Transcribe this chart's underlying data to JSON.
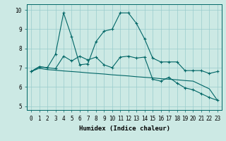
{
  "xlabel": "Humidex (Indice chaleur)",
  "ylabel": "",
  "background_color": "#cce9e4",
  "grid_color": "#99cccc",
  "line_color": "#006666",
  "xlim_min": -0.5,
  "xlim_max": 23.5,
  "ylim_min": 4.8,
  "ylim_max": 10.3,
  "xticks": [
    0,
    1,
    2,
    3,
    4,
    5,
    6,
    7,
    8,
    9,
    10,
    11,
    12,
    13,
    14,
    15,
    16,
    17,
    18,
    19,
    20,
    21,
    22,
    23
  ],
  "yticks": [
    5,
    6,
    7,
    8,
    9,
    10
  ],
  "series1_x": [
    0,
    1,
    2,
    3,
    4,
    5,
    6,
    7,
    8,
    9,
    10,
    11,
    12,
    13,
    14,
    15,
    16,
    17,
    18,
    19,
    20,
    21,
    22,
    23
  ],
  "series1_y": [
    6.8,
    7.05,
    7.0,
    7.7,
    9.85,
    8.6,
    7.15,
    7.2,
    8.35,
    8.9,
    9.0,
    9.85,
    9.85,
    9.3,
    8.5,
    7.5,
    7.3,
    7.3,
    7.3,
    6.85,
    6.85,
    6.85,
    6.7,
    6.8
  ],
  "series2_x": [
    0,
    1,
    2,
    3,
    4,
    5,
    6,
    7,
    8,
    9,
    10,
    11,
    12,
    13,
    14,
    15,
    16,
    17,
    18,
    19,
    20,
    21,
    22,
    23
  ],
  "series2_y": [
    6.8,
    7.05,
    7.0,
    6.95,
    7.6,
    7.35,
    7.6,
    7.4,
    7.55,
    7.15,
    7.0,
    7.55,
    7.6,
    7.5,
    7.55,
    6.4,
    6.3,
    6.5,
    6.2,
    5.95,
    5.85,
    5.65,
    5.45,
    5.3
  ],
  "series3_x": [
    0,
    1,
    2,
    3,
    4,
    5,
    6,
    7,
    8,
    9,
    10,
    11,
    12,
    13,
    14,
    15,
    16,
    17,
    18,
    19,
    20,
    21,
    22,
    23
  ],
  "series3_y": [
    6.8,
    6.97,
    6.9,
    6.87,
    6.83,
    6.8,
    6.77,
    6.73,
    6.7,
    6.67,
    6.63,
    6.6,
    6.57,
    6.53,
    6.5,
    6.47,
    6.43,
    6.4,
    6.37,
    6.33,
    6.3,
    6.1,
    5.9,
    5.3
  ]
}
